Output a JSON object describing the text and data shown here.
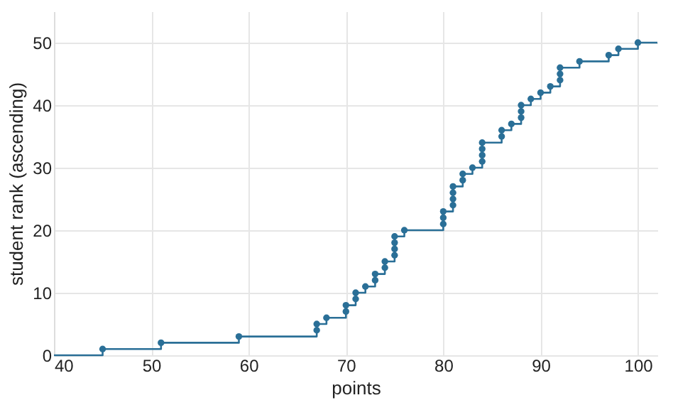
{
  "chart_data": {
    "type": "scatter",
    "xlabel": "points",
    "ylabel": "student rank (ascending)",
    "xlim": [
      40,
      102
    ],
    "xticks": [
      40,
      50,
      60,
      70,
      80,
      90,
      100
    ],
    "ylim": [
      0,
      55
    ],
    "yticks": [
      0,
      10,
      20,
      30,
      40,
      50
    ],
    "grid": true,
    "marker": "circle",
    "series": [
      {
        "type": "step",
        "color": "#2a6f97",
        "marker": "none",
        "line_style": "solid",
        "x": [
          40,
          45,
          51,
          59,
          67,
          67,
          68,
          70,
          70,
          71,
          71,
          72,
          73,
          73,
          74,
          74,
          75,
          75,
          75,
          75,
          76,
          80,
          80,
          80,
          81,
          81,
          81,
          81,
          82,
          82,
          83,
          84,
          84,
          84,
          84,
          86,
          86,
          87,
          88,
          88,
          88,
          89,
          90,
          91,
          92,
          92,
          92,
          94,
          97,
          98,
          100,
          102
        ],
        "values": [
          0,
          1,
          2,
          3,
          4,
          5,
          6,
          7,
          8,
          9,
          10,
          11,
          12,
          13,
          14,
          15,
          16,
          17,
          18,
          19,
          20,
          21,
          22,
          23,
          24,
          25,
          26,
          27,
          28,
          29,
          30,
          31,
          32,
          33,
          34,
          35,
          36,
          37,
          38,
          39,
          40,
          41,
          42,
          43,
          44,
          45,
          46,
          47,
          48,
          49,
          50,
          50
        ]
      },
      {
        "color": "#2a6f97",
        "x": [
          45,
          51,
          59,
          67,
          67,
          68,
          70,
          70,
          71,
          71,
          72,
          73,
          73,
          74,
          74,
          75,
          75,
          75,
          75,
          76,
          80,
          80,
          80,
          81,
          81,
          81,
          81,
          82,
          82,
          83,
          84,
          84,
          84,
          84,
          86,
          86,
          87,
          88,
          88,
          88,
          89,
          90,
          91,
          92,
          92,
          92,
          94,
          97,
          98,
          100
        ],
        "values": [
          1,
          2,
          3,
          4,
          5,
          6,
          7,
          8,
          9,
          10,
          11,
          12,
          13,
          14,
          15,
          16,
          17,
          18,
          19,
          20,
          21,
          22,
          23,
          24,
          25,
          26,
          27,
          28,
          29,
          30,
          31,
          32,
          33,
          34,
          35,
          36,
          37,
          38,
          39,
          40,
          41,
          42,
          43,
          44,
          45,
          46,
          47,
          48,
          49,
          50
        ]
      }
    ]
  }
}
